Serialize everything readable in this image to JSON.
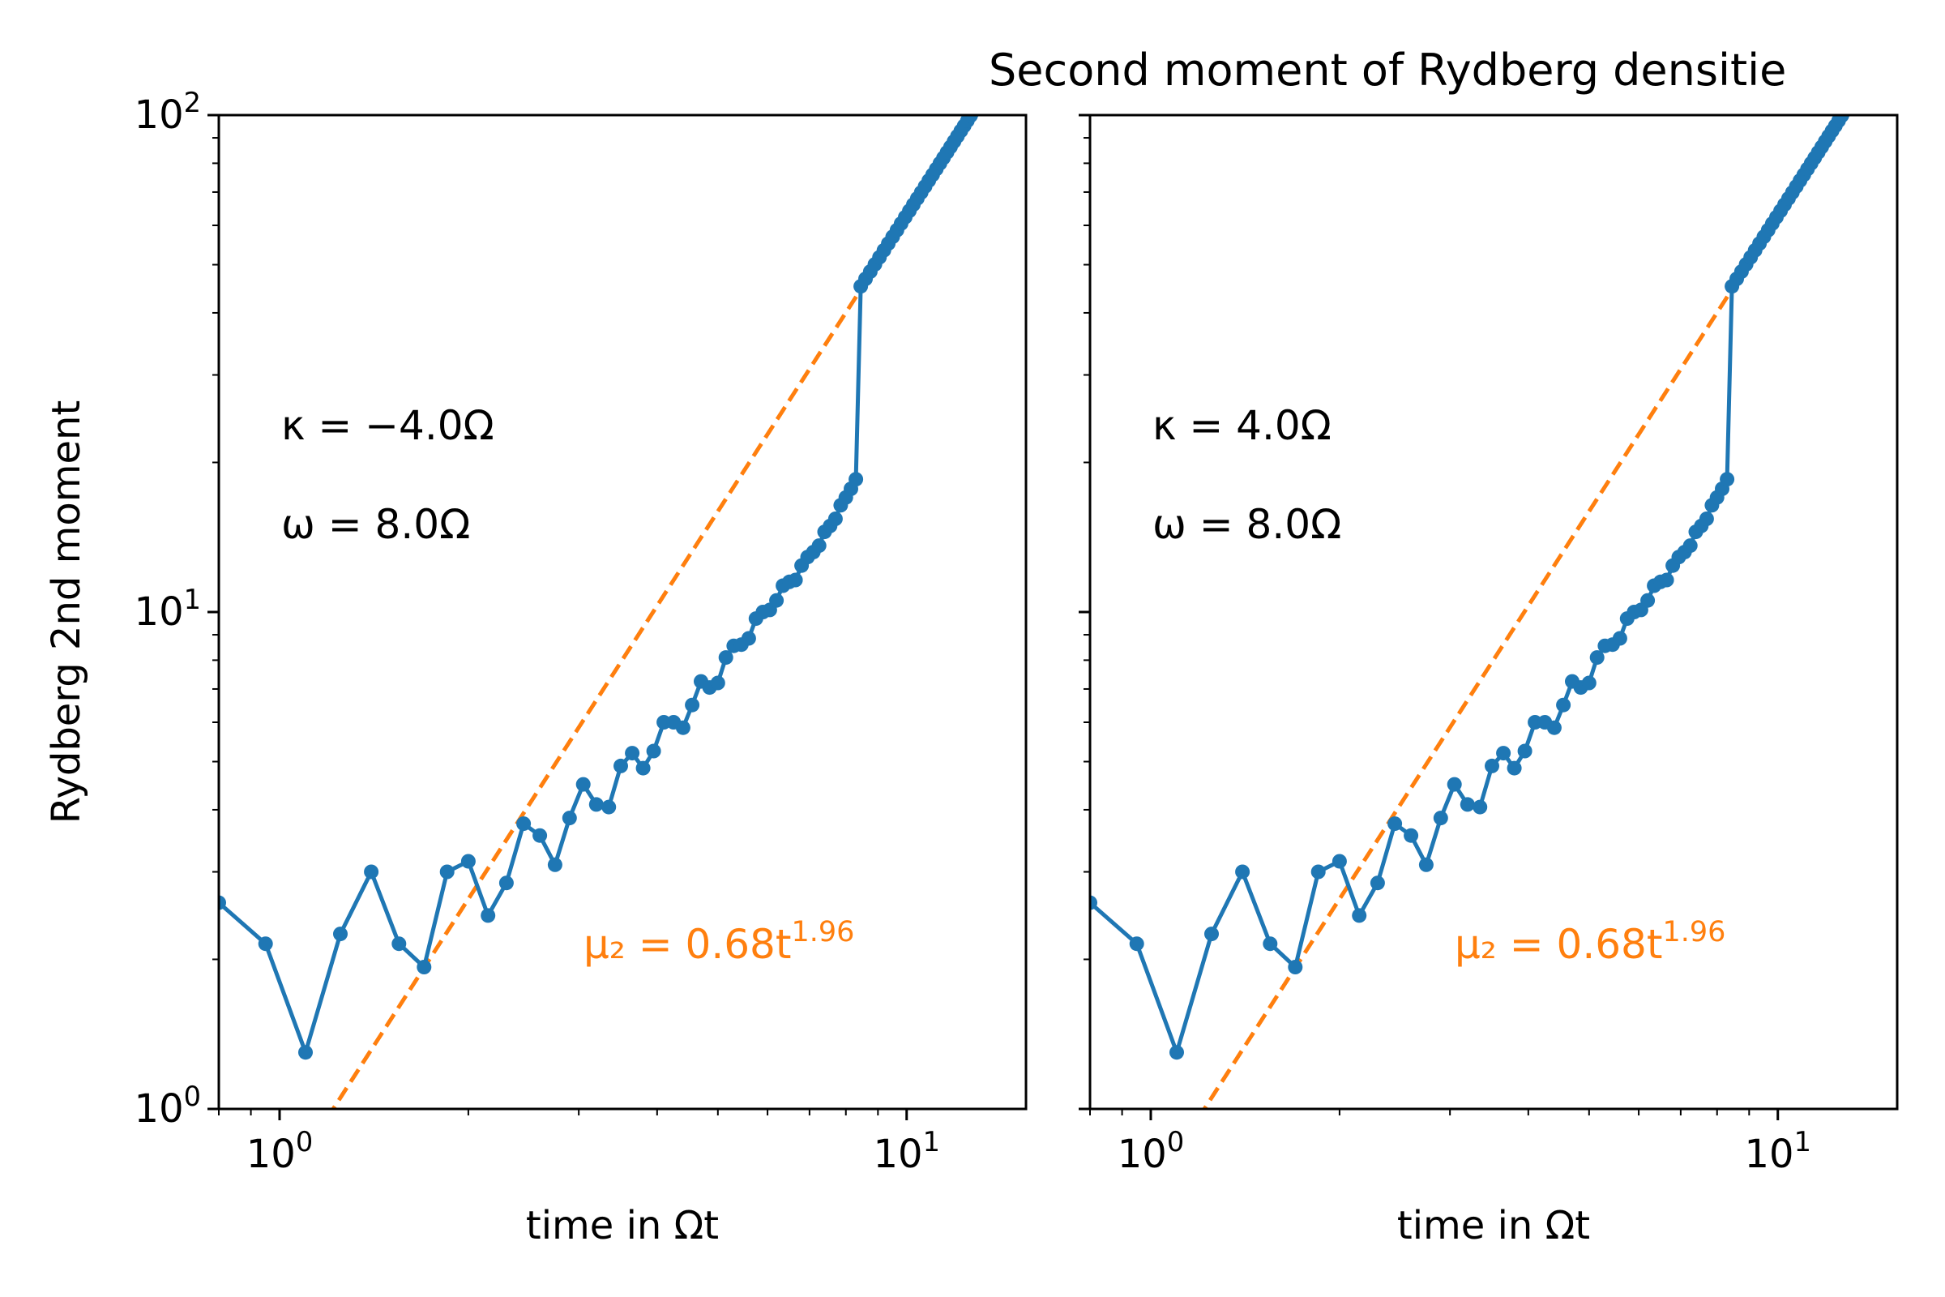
{
  "figure": {
    "title": "Second moment of Rydberg densitie",
    "colors": {
      "data": "#1f77b4",
      "fit": "#ff7f0e",
      "axis": "#000000"
    }
  },
  "chart_data": [
    {
      "type": "line",
      "scale": {
        "x": "log",
        "y": "log"
      },
      "xlim": [
        0.8,
        15.5
      ],
      "ylim": [
        1,
        100
      ],
      "xlabel": "time in Ωt",
      "ylabel": "Rydberg 2nd moment",
      "x_tick_labels": [
        "10^0",
        "10^1"
      ],
      "y_tick_labels": [
        "10^0",
        "10^1",
        "10^2"
      ],
      "annotations": [
        {
          "text": "κ = −4.0Ω"
        },
        {
          "text": "ω = 8.0Ω"
        }
      ],
      "fit": {
        "label": "μ₂ = 0.68t^1.96",
        "coefficient": 0.68,
        "exponent": 1.96,
        "style": "dashed"
      },
      "series": [
        {
          "marker": "circle",
          "x_start": 0.8,
          "dx": 0.15,
          "x_end": 15.5,
          "early_y": [
            2.6,
            2.15,
            1.3,
            2.25,
            3.0,
            2.15,
            1.93,
            3.0,
            3.15,
            2.45,
            2.85,
            3.75,
            3.55,
            3.1,
            3.85,
            4.5,
            4.1,
            4.05,
            4.9,
            5.2,
            4.85,
            5.25,
            6.0,
            6.0,
            5.85,
            6.5,
            7.25,
            7.05,
            7.2,
            8.1,
            8.55,
            8.6,
            8.85,
            9.7,
            10.0,
            10.1,
            10.55,
            11.3,
            11.5,
            11.6,
            12.4,
            12.9,
            13.2,
            13.6,
            14.5,
            14.9,
            15.4,
            16.4,
            17.0,
            17.7,
            18.5
          ],
          "late_rule": "y = 0.69 t^1.96"
        }
      ]
    },
    {
      "type": "line",
      "scale": {
        "x": "log",
        "y": "log"
      },
      "xlim": [
        0.8,
        15.5
      ],
      "ylim": [
        1,
        100
      ],
      "xlabel": "time in Ωt",
      "ylabel": "",
      "x_tick_labels": [
        "10^0",
        "10^1"
      ],
      "y_tick_labels": [],
      "annotations": [
        {
          "text": "κ = 4.0Ω"
        },
        {
          "text": "ω = 8.0Ω"
        }
      ],
      "fit": {
        "label": "μ₂ = 0.68t^1.96",
        "coefficient": 0.68,
        "exponent": 1.96,
        "style": "dashed"
      },
      "series": [
        {
          "marker": "circle",
          "x_start": 0.8,
          "dx": 0.15,
          "x_end": 15.5,
          "early_y": [
            2.6,
            2.15,
            1.3,
            2.25,
            3.0,
            2.15,
            1.93,
            3.0,
            3.15,
            2.45,
            2.85,
            3.75,
            3.55,
            3.1,
            3.85,
            4.5,
            4.1,
            4.05,
            4.9,
            5.2,
            4.85,
            5.25,
            6.0,
            6.0,
            5.85,
            6.5,
            7.25,
            7.05,
            7.2,
            8.1,
            8.55,
            8.6,
            8.85,
            9.7,
            10.0,
            10.1,
            10.55,
            11.3,
            11.5,
            11.6,
            12.4,
            12.9,
            13.2,
            13.6,
            14.5,
            14.9,
            15.4,
            16.4,
            17.0,
            17.7,
            18.5
          ],
          "late_rule": "y = 0.69 t^1.96"
        }
      ]
    }
  ]
}
